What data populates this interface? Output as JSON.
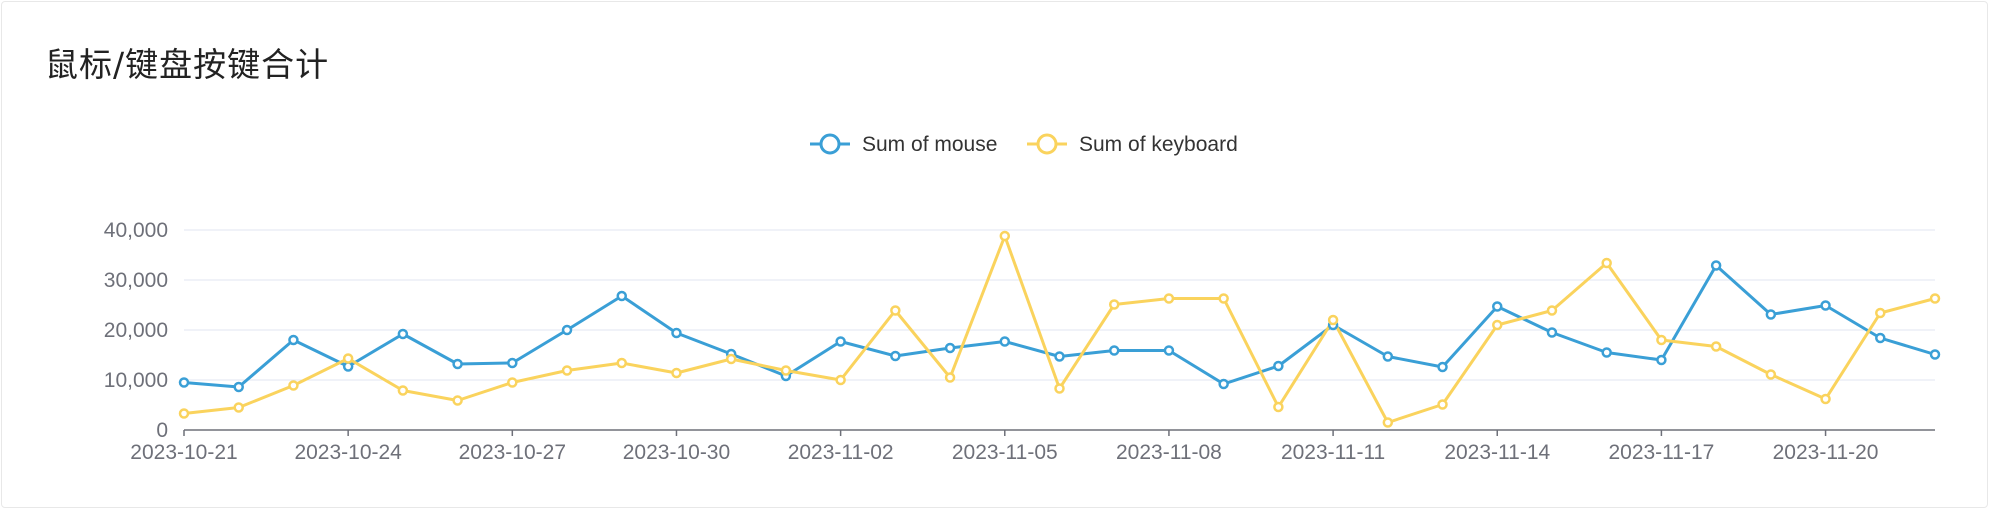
{
  "title": "鼠标/键盘按键合计",
  "chart_data": {
    "type": "line",
    "x": [
      "2023-10-21",
      "2023-10-22",
      "2023-10-23",
      "2023-10-24",
      "2023-10-25",
      "2023-10-26",
      "2023-10-27",
      "2023-10-28",
      "2023-10-29",
      "2023-10-30",
      "2023-10-31",
      "2023-11-01",
      "2023-11-02",
      "2023-11-03",
      "2023-11-04",
      "2023-11-05",
      "2023-11-06",
      "2023-11-07",
      "2023-11-08",
      "2023-11-09",
      "2023-11-10",
      "2023-11-11",
      "2023-11-12",
      "2023-11-13",
      "2023-11-14",
      "2023-11-15",
      "2023-11-16",
      "2023-11-17",
      "2023-11-18",
      "2023-11-19",
      "2023-11-20",
      "2023-11-21",
      "2023-11-22"
    ],
    "x_tick_labels": [
      "2023-10-21",
      "2023-10-24",
      "2023-10-27",
      "2023-10-30",
      "2023-11-02",
      "2023-11-05",
      "2023-11-08",
      "2023-11-11",
      "2023-11-14",
      "2023-11-17",
      "2023-11-20"
    ],
    "ylim": [
      0,
      40000
    ],
    "y_ticks": [
      0,
      10000,
      20000,
      30000,
      40000
    ],
    "y_tick_labels": [
      "0",
      "10,000",
      "20,000",
      "30,000",
      "40,000"
    ],
    "grid": true,
    "legend_position": "top-center",
    "series": [
      {
        "name": "Sum of mouse",
        "color": "#3a9fd6",
        "values": [
          9500,
          8600,
          18000,
          12700,
          19200,
          13200,
          13400,
          20000,
          26800,
          19400,
          15200,
          10800,
          17700,
          14800,
          16400,
          17700,
          14700,
          15900,
          15900,
          9200,
          12800,
          21000,
          14700,
          12600,
          24700,
          19500,
          15500,
          14000,
          32900,
          23100,
          24900,
          18400,
          15100
        ]
      },
      {
        "name": "Sum of keyboard",
        "color": "#fad35d",
        "values": [
          3300,
          4500,
          8900,
          14300,
          7900,
          5900,
          9500,
          11900,
          13400,
          11400,
          14200,
          11900,
          10000,
          23900,
          10500,
          38800,
          8300,
          25100,
          26300,
          26300,
          4600,
          22000,
          1500,
          5100,
          21000,
          23900,
          33400,
          18000,
          16700,
          11100,
          6200,
          23400,
          26300
        ]
      }
    ]
  }
}
